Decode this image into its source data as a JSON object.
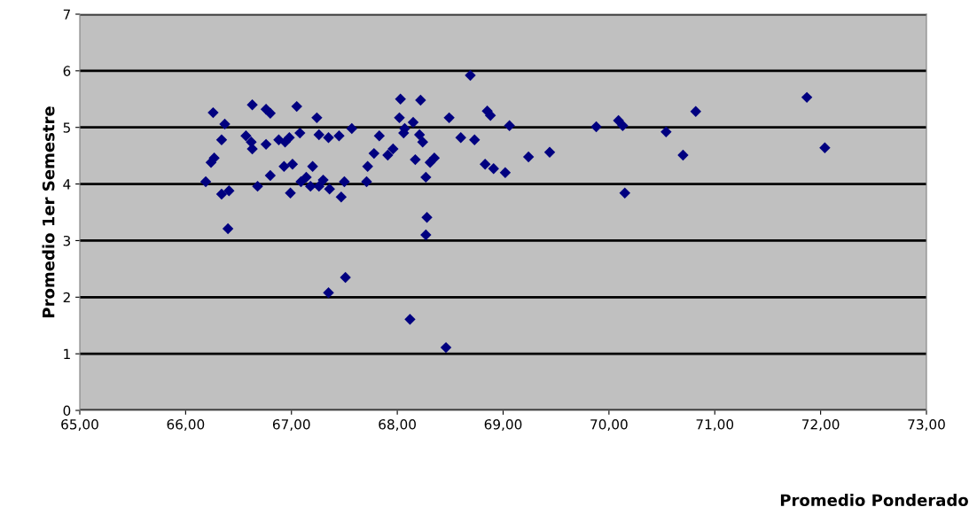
{
  "chart_data": {
    "type": "scatter",
    "xlabel": "Promedio Ponderado",
    "ylabel": "Promedio 1er Semestre",
    "xlim": [
      65,
      73
    ],
    "xticks": [
      {
        "value": 65,
        "label": "65,00"
      },
      {
        "value": 66,
        "label": "66,00"
      },
      {
        "value": 67,
        "label": "67,00"
      },
      {
        "value": 68,
        "label": "68,00"
      },
      {
        "value": 69,
        "label": "69,00"
      },
      {
        "value": 70,
        "label": "70,00"
      },
      {
        "value": 71,
        "label": "71,00"
      },
      {
        "value": 72,
        "label": "72,00"
      },
      {
        "value": 73,
        "label": "73,00"
      }
    ],
    "ylim": [
      0,
      7
    ],
    "yticks": [
      0,
      1,
      2,
      3,
      4,
      5,
      6,
      7
    ],
    "grid": "y",
    "marker": "diamond",
    "legend": false,
    "series": [
      {
        "color": "#000080",
        "x": [
          66.19,
          66.26,
          66.24,
          66.27,
          66.34,
          66.37,
          66.34,
          66.41,
          66.4,
          66.57,
          66.63,
          66.62,
          66.63,
          66.68,
          66.76,
          66.76,
          66.8,
          66.8,
          66.88,
          66.93,
          66.94,
          66.98,
          66.99,
          67.01,
          67.05,
          67.08,
          67.09,
          67.14,
          67.18,
          67.2,
          67.24,
          67.26,
          67.26,
          67.3,
          67.35,
          67.36,
          67.35,
          67.45,
          67.47,
          67.5,
          67.51,
          67.57,
          67.71,
          67.72,
          67.78,
          67.83,
          67.91,
          67.96,
          68.02,
          68.03,
          68.06,
          68.07,
          68.12,
          68.15,
          68.17,
          68.21,
          68.22,
          68.24,
          68.27,
          68.28,
          68.27,
          68.31,
          68.35,
          68.46,
          68.49,
          68.6,
          68.69,
          68.73,
          68.83,
          68.85,
          68.88,
          68.91,
          69.02,
          69.06,
          69.24,
          69.44,
          69.88,
          70.09,
          70.13,
          70.15,
          70.54,
          70.7,
          70.82,
          71.87,
          72.04
        ],
        "values": [
          4.04,
          5.26,
          4.38,
          4.46,
          4.78,
          5.06,
          3.82,
          3.88,
          3.21,
          4.85,
          5.4,
          4.74,
          4.62,
          3.96,
          4.7,
          5.32,
          5.25,
          4.15,
          4.78,
          4.31,
          4.74,
          4.82,
          3.84,
          4.35,
          5.37,
          4.9,
          4.04,
          4.12,
          3.96,
          4.31,
          5.17,
          4.87,
          3.96,
          4.07,
          4.82,
          3.91,
          2.08,
          4.85,
          3.77,
          4.04,
          2.35,
          4.98,
          4.04,
          4.31,
          4.54,
          4.85,
          4.51,
          4.62,
          5.17,
          5.5,
          4.9,
          4.98,
          1.61,
          5.09,
          4.43,
          4.87,
          5.48,
          4.74,
          4.12,
          3.41,
          3.1,
          4.38,
          4.46,
          1.11,
          5.17,
          4.82,
          5.92,
          4.78,
          4.35,
          5.29,
          5.21,
          4.27,
          4.2,
          5.03,
          4.48,
          4.56,
          5.01,
          5.12,
          5.03,
          3.84,
          4.92,
          4.51,
          5.28,
          5.53,
          4.64
        ]
      }
    ]
  }
}
